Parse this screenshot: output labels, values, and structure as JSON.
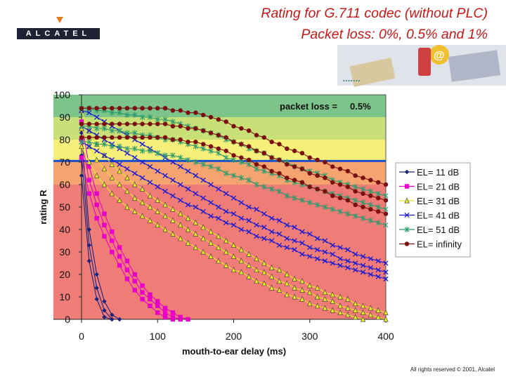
{
  "header": {
    "logo_text": "ALCATEL",
    "title_line1": "Rating for G.711 codec (without PLC)",
    "title_line2": "Packet loss: 0%, 0.5% and 1%"
  },
  "footer": {
    "copyright": "All rights reserved © 2001, Alcatel"
  },
  "colors": {
    "accent": "#e07a1a",
    "title": "#c41818",
    "logo_bg": "#1e2233",
    "marker_line": "#1a4ec8",
    "bands": [
      "#f07c78",
      "#f5a470",
      "#f6f07a",
      "#c9e078",
      "#7cc48a"
    ]
  },
  "chart_data": {
    "type": "line",
    "title": "",
    "annotation_label": "packet loss =",
    "annotation_value": "0.5%",
    "xlabel": "mouth-to-ear delay (ms)",
    "ylabel": "rating R",
    "xlim": [
      0,
      400
    ],
    "ylim": [
      0,
      100
    ],
    "x_ticks": [
      0,
      100,
      200,
      300,
      400
    ],
    "y_ticks": [
      0,
      10,
      20,
      30,
      40,
      50,
      60,
      70,
      80,
      90,
      100
    ],
    "grid": false,
    "legend_position": "right",
    "quality_bands": [
      {
        "from": 0,
        "to": 60
      },
      {
        "from": 60,
        "to": 70
      },
      {
        "from": 70,
        "to": 80
      },
      {
        "from": 80,
        "to": 90
      },
      {
        "from": 90,
        "to": 100
      }
    ],
    "reference_line": 70.5,
    "x": [
      0,
      10,
      20,
      30,
      40,
      50,
      60,
      70,
      80,
      90,
      100,
      110,
      120,
      130,
      140,
      150,
      160,
      170,
      180,
      190,
      200,
      210,
      220,
      230,
      240,
      250,
      260,
      270,
      280,
      290,
      300,
      310,
      320,
      330,
      340,
      350,
      360,
      370,
      380,
      390,
      400
    ],
    "series": [
      {
        "name": "EL= 11 dB",
        "marker": "diamond",
        "color": "#1a237e",
        "curves": [
          [
            83,
            40,
            20,
            8,
            2,
            0,
            0,
            0,
            0,
            0,
            0,
            0,
            0,
            0,
            0,
            0,
            0,
            0,
            0,
            0,
            0,
            0,
            0,
            0,
            0,
            0,
            0,
            0,
            0,
            0,
            0,
            0,
            0,
            0,
            0,
            0,
            0,
            0,
            0,
            0,
            0
          ],
          [
            73,
            33,
            14,
            4,
            0,
            0,
            0,
            0,
            0,
            0,
            0,
            0,
            0,
            0,
            0,
            0,
            0,
            0,
            0,
            0,
            0,
            0,
            0,
            0,
            0,
            0,
            0,
            0,
            0,
            0,
            0,
            0,
            0,
            0,
            0,
            0,
            0,
            0,
            0,
            0,
            0
          ],
          [
            64,
            26,
            9,
            1,
            0,
            0,
            0,
            0,
            0,
            0,
            0,
            0,
            0,
            0,
            0,
            0,
            0,
            0,
            0,
            0,
            0,
            0,
            0,
            0,
            0,
            0,
            0,
            0,
            0,
            0,
            0,
            0,
            0,
            0,
            0,
            0,
            0,
            0,
            0,
            0,
            0
          ]
        ]
      },
      {
        "name": "EL= 21 dB",
        "marker": "square",
        "color": "#e600c8",
        "curves": [
          [
            88,
            68,
            56,
            47,
            39,
            32,
            26,
            20,
            15,
            11,
            8,
            5,
            3,
            1,
            0,
            0,
            0,
            0,
            0,
            0,
            0,
            0,
            0,
            0,
            0,
            0,
            0,
            0,
            0,
            0,
            0,
            0,
            0,
            0,
            0,
            0,
            0,
            0,
            0,
            0,
            0
          ],
          [
            80,
            62,
            51,
            42,
            35,
            28,
            22,
            17,
            12,
            9,
            6,
            3,
            1,
            0,
            0,
            0,
            0,
            0,
            0,
            0,
            0,
            0,
            0,
            0,
            0,
            0,
            0,
            0,
            0,
            0,
            0,
            0,
            0,
            0,
            0,
            0,
            0,
            0,
            0,
            0,
            0
          ],
          [
            72,
            56,
            45,
            37,
            30,
            24,
            18,
            13,
            9,
            6,
            3,
            1,
            0,
            0,
            0,
            0,
            0,
            0,
            0,
            0,
            0,
            0,
            0,
            0,
            0,
            0,
            0,
            0,
            0,
            0,
            0,
            0,
            0,
            0,
            0,
            0,
            0,
            0,
            0,
            0,
            0
          ]
        ]
      },
      {
        "name": "EL= 31 dB",
        "marker": "triangle",
        "color": "#e8e830",
        "curves": [
          [
            93,
            84,
            78,
            73,
            69,
            66,
            63,
            60,
            58,
            55,
            53,
            51,
            49,
            47,
            45,
            43,
            41,
            39,
            37,
            35,
            33,
            31,
            29,
            27,
            25,
            23,
            22,
            20,
            18,
            17,
            15,
            14,
            12,
            11,
            10,
            9,
            7,
            6,
            5,
            4,
            3
          ],
          [
            85,
            77,
            71,
            67,
            63,
            60,
            57,
            54,
            52,
            50,
            48,
            46,
            44,
            42,
            40,
            38,
            36,
            34,
            32,
            30,
            28,
            26,
            24,
            22,
            21,
            19,
            17,
            16,
            14,
            13,
            12,
            10,
            9,
            8,
            6,
            5,
            4,
            3,
            2,
            1,
            0
          ],
          [
            77,
            70,
            64,
            60,
            56,
            53,
            50,
            48,
            46,
            44,
            42,
            40,
            38,
            36,
            34,
            32,
            30,
            28,
            26,
            24,
            22,
            21,
            19,
            17,
            16,
            14,
            13,
            11,
            10,
            9,
            7,
            6,
            5,
            4,
            3,
            2,
            1,
            0,
            0,
            0,
            0
          ]
        ]
      },
      {
        "name": "EL= 41 dB",
        "marker": "x",
        "color": "#1a1ad0",
        "curves": [
          [
            93,
            92,
            90,
            88,
            86,
            84,
            82,
            80,
            78,
            76,
            74,
            72,
            70,
            68,
            66,
            64,
            62,
            60,
            58,
            56,
            54,
            52,
            50,
            49,
            47,
            45,
            44,
            42,
            41,
            39,
            38,
            36,
            35,
            33,
            32,
            31,
            29,
            28,
            27,
            26,
            25
          ],
          [
            86,
            84,
            82,
            80,
            78,
            76,
            74,
            72,
            70,
            68,
            66,
            64,
            62,
            60,
            58,
            56,
            54,
            52,
            50,
            48,
            47,
            45,
            44,
            42,
            41,
            39,
            38,
            36,
            35,
            34,
            32,
            31,
            30,
            29,
            27,
            26,
            25,
            24,
            23,
            22,
            21
          ],
          [
            79,
            77,
            75,
            73,
            71,
            69,
            67,
            65,
            63,
            61,
            59,
            57,
            55,
            53,
            51,
            50,
            48,
            46,
            45,
            43,
            42,
            40,
            39,
            37,
            36,
            35,
            33,
            32,
            31,
            29,
            28,
            27,
            26,
            25,
            24,
            23,
            22,
            21,
            20,
            19,
            18
          ]
        ]
      },
      {
        "name": "EL= 51 dB",
        "marker": "star",
        "color": "#2e9a6c",
        "curves": [
          [
            94,
            94,
            93,
            93,
            92,
            92,
            91,
            91,
            90,
            90,
            89,
            89,
            88,
            87,
            86,
            85,
            84,
            83,
            82,
            80,
            79,
            78,
            76,
            75,
            74,
            72,
            71,
            70,
            68,
            67,
            66,
            65,
            64,
            62,
            61,
            60,
            59,
            58,
            57,
            56,
            55
          ],
          [
            86,
            86,
            85,
            85,
            84,
            84,
            83,
            83,
            82,
            82,
            81,
            80,
            80,
            79,
            78,
            77,
            76,
            75,
            74,
            72,
            71,
            70,
            69,
            67,
            66,
            65,
            64,
            62,
            61,
            60,
            59,
            58,
            57,
            56,
            55,
            54,
            53,
            52,
            51,
            50,
            49
          ],
          [
            79,
            79,
            78,
            78,
            77,
            77,
            76,
            76,
            75,
            75,
            74,
            73,
            73,
            72,
            71,
            70,
            69,
            68,
            67,
            65,
            64,
            63,
            62,
            60,
            59,
            58,
            57,
            55,
            54,
            53,
            52,
            51,
            50,
            49,
            48,
            47,
            46,
            45,
            44,
            43,
            42
          ]
        ]
      },
      {
        "name": "EL= infinity",
        "marker": "circle",
        "color": "#7a1010",
        "curves": [
          [
            94,
            94,
            94,
            94,
            94,
            94,
            94,
            94,
            94,
            94,
            94,
            94,
            93,
            93,
            92,
            92,
            91,
            90,
            89,
            88,
            86,
            85,
            84,
            82,
            81,
            79,
            78,
            76,
            75,
            74,
            72,
            71,
            70,
            68,
            67,
            66,
            64,
            63,
            62,
            61,
            60
          ],
          [
            87,
            87,
            87,
            87,
            87,
            87,
            87,
            87,
            87,
            87,
            87,
            87,
            86,
            86,
            85,
            85,
            84,
            83,
            82,
            81,
            79,
            78,
            77,
            75,
            74,
            72,
            71,
            69,
            68,
            67,
            65,
            64,
            63,
            61,
            60,
            59,
            57,
            56,
            55,
            54,
            53
          ],
          [
            81,
            81,
            81,
            81,
            81,
            81,
            81,
            81,
            81,
            81,
            81,
            81,
            80,
            80,
            79,
            79,
            78,
            77,
            76,
            75,
            73,
            72,
            71,
            69,
            68,
            66,
            65,
            63,
            62,
            61,
            59,
            58,
            57,
            55,
            54,
            53,
            51,
            50,
            49,
            48,
            47
          ]
        ]
      }
    ]
  }
}
